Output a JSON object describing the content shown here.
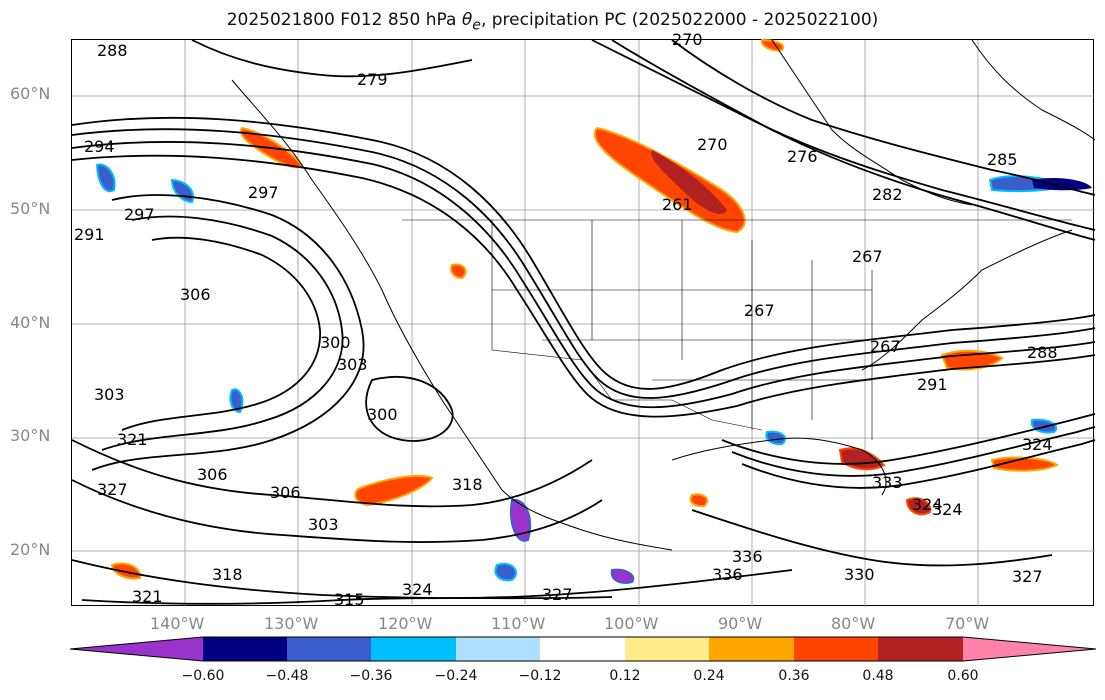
{
  "title": {
    "prefix": "2025021800 F012 850 hPa ",
    "symbol": "θ",
    "subscript": "e",
    "suffix": ", precipitation PC (2025022000 - 2025022100)"
  },
  "map": {
    "lat_labels": [
      "60°N",
      "50°N",
      "40°N",
      "30°N",
      "20°N"
    ],
    "lon_labels": [
      "140°W",
      "130°W",
      "120°W",
      "110°W",
      "100°W",
      "90°W",
      "80°W",
      "70°W"
    ],
    "contour_labels": [
      "288",
      "279",
      "270",
      "270",
      "276",
      "282",
      "285",
      "294",
      "297",
      "297",
      "291",
      "306",
      "300",
      "303",
      "300",
      "303",
      "306",
      "306",
      "303",
      "327",
      "315",
      "324",
      "321",
      "318",
      "318",
      "336",
      "330",
      "327",
      "324",
      "291",
      "288",
      "267",
      "267",
      "267",
      "261",
      "333",
      "324",
      "327",
      "324",
      "336",
      "321"
    ]
  },
  "colorbar": {
    "colors": [
      "#9933cc",
      "#000080",
      "#3a5fcd",
      "#00bfff",
      "#b0e0ff",
      "#ffffff",
      "#ffec8b",
      "#ffa500",
      "#ff4500",
      "#b22222",
      "#ff82ab"
    ],
    "labels": [
      "−0.60",
      "−0.48",
      "−0.36",
      "−0.24",
      "−0.12",
      "0.12",
      "0.24",
      "0.36",
      "0.48",
      "0.60"
    ]
  }
}
